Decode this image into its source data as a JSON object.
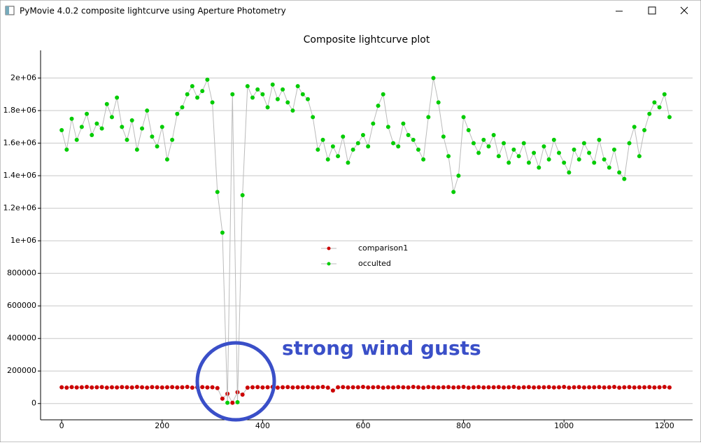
{
  "window": {
    "title": "PyMovie 4.0.2 composite lightcurve using Aperture Photometry"
  },
  "chart_data": {
    "type": "line",
    "title": "Composite lightcurve plot",
    "annotation": "strong wind gusts",
    "legend_position": "center",
    "grid": true,
    "xlim": [
      -42,
      1256
    ],
    "xticks": [
      0,
      200,
      400,
      600,
      800,
      1000,
      1200
    ],
    "ylim": [
      -100000,
      2170000
    ],
    "yticks": [
      0,
      200000,
      400000,
      600000,
      800000,
      {
        "value": 1000000,
        "label": "1e+06"
      },
      {
        "value": 1200000,
        "label": "1.2e+06"
      },
      {
        "value": 1400000,
        "label": "1.4e+06"
      },
      {
        "value": 1600000,
        "label": "1.6e+06"
      },
      {
        "value": 1800000,
        "label": "1.8e+06"
      },
      {
        "value": 2000000,
        "label": "2e+06"
      }
    ],
    "x": [
      0,
      10,
      20,
      30,
      40,
      50,
      60,
      70,
      80,
      90,
      100,
      110,
      120,
      130,
      140,
      150,
      160,
      170,
      180,
      190,
      200,
      210,
      220,
      230,
      240,
      250,
      260,
      270,
      280,
      290,
      300,
      310,
      320,
      330,
      340,
      350,
      360,
      370,
      380,
      390,
      400,
      410,
      420,
      430,
      440,
      450,
      460,
      470,
      480,
      490,
      500,
      510,
      520,
      530,
      540,
      550,
      560,
      570,
      580,
      590,
      600,
      610,
      620,
      630,
      640,
      650,
      660,
      670,
      680,
      690,
      700,
      710,
      720,
      730,
      740,
      750,
      760,
      770,
      780,
      790,
      800,
      810,
      820,
      830,
      840,
      850,
      860,
      870,
      880,
      890,
      900,
      910,
      920,
      930,
      940,
      950,
      960,
      970,
      980,
      990,
      1000,
      1010,
      1020,
      1030,
      1040,
      1050,
      1060,
      1070,
      1080,
      1090,
      1100,
      1110,
      1120,
      1130,
      1140,
      1150,
      1160,
      1170,
      1180,
      1190,
      1200,
      1210
    ],
    "series": [
      {
        "name": "comparison1",
        "color": "#cc0000",
        "values": [
          100000,
          98000,
          101000,
          99000,
          100000,
          102000,
          99000,
          100000,
          101000,
          98000,
          100000,
          99000,
          101000,
          100000,
          99000,
          102000,
          100000,
          98000,
          101000,
          100000,
          99000,
          100000,
          101000,
          99000,
          100000,
          102000,
          98000,
          100000,
          101000,
          99000,
          100000,
          95000,
          30000,
          60000,
          5000,
          70000,
          55000,
          98000,
          100000,
          101000,
          99000,
          100000,
          102000,
          98000,
          100000,
          101000,
          99000,
          100000,
          100000,
          101000,
          99000,
          100000,
          102000,
          98000,
          80000,
          100000,
          101000,
          99000,
          100000,
          100000,
          102000,
          99000,
          100000,
          101000,
          98000,
          100000,
          99000,
          101000,
          100000,
          99000,
          102000,
          100000,
          98000,
          101000,
          100000,
          99000,
          100000,
          101000,
          99000,
          100000,
          102000,
          98000,
          100000,
          101000,
          99000,
          100000,
          100000,
          101000,
          99000,
          100000,
          102000,
          98000,
          100000,
          101000,
          99000,
          100000,
          100000,
          101000,
          99000,
          100000,
          102000,
          98000,
          100000,
          101000,
          99000,
          100000,
          100000,
          101000,
          99000,
          100000,
          102000,
          98000,
          100000,
          101000,
          99000,
          100000,
          100000,
          101000,
          99000,
          100000,
          102000,
          99000
        ]
      },
      {
        "name": "occulted",
        "color": "#00cc00",
        "values": [
          1680000,
          1560000,
          1750000,
          1620000,
          1700000,
          1780000,
          1650000,
          1720000,
          1690000,
          1840000,
          1760000,
          1880000,
          1700000,
          1620000,
          1740000,
          1560000,
          1690000,
          1800000,
          1640000,
          1580000,
          1700000,
          1500000,
          1620000,
          1780000,
          1820000,
          1900000,
          1950000,
          1880000,
          1920000,
          1990000,
          1850000,
          1300000,
          1050000,
          5000,
          1900000,
          8000,
          1280000,
          1950000,
          1880000,
          1930000,
          1900000,
          1820000,
          1960000,
          1870000,
          1930000,
          1850000,
          1800000,
          1950000,
          1900000,
          1870000,
          1760000,
          1560000,
          1620000,
          1500000,
          1580000,
          1520000,
          1640000,
          1480000,
          1560000,
          1600000,
          1650000,
          1580000,
          1720000,
          1830000,
          1900000,
          1700000,
          1600000,
          1580000,
          1720000,
          1650000,
          1620000,
          1560000,
          1500000,
          1760000,
          2000000,
          1850000,
          1640000,
          1520000,
          1300000,
          1400000,
          1760000,
          1680000,
          1600000,
          1540000,
          1620000,
          1580000,
          1650000,
          1520000,
          1600000,
          1480000,
          1560000,
          1520000,
          1600000,
          1480000,
          1540000,
          1450000,
          1580000,
          1500000,
          1620000,
          1540000,
          1480000,
          1420000,
          1560000,
          1500000,
          1600000,
          1540000,
          1480000,
          1620000,
          1500000,
          1450000,
          1560000,
          1420000,
          1380000,
          1600000,
          1700000,
          1520000,
          1680000,
          1780000,
          1850000,
          1820000,
          1900000,
          1760000
        ]
      }
    ]
  }
}
